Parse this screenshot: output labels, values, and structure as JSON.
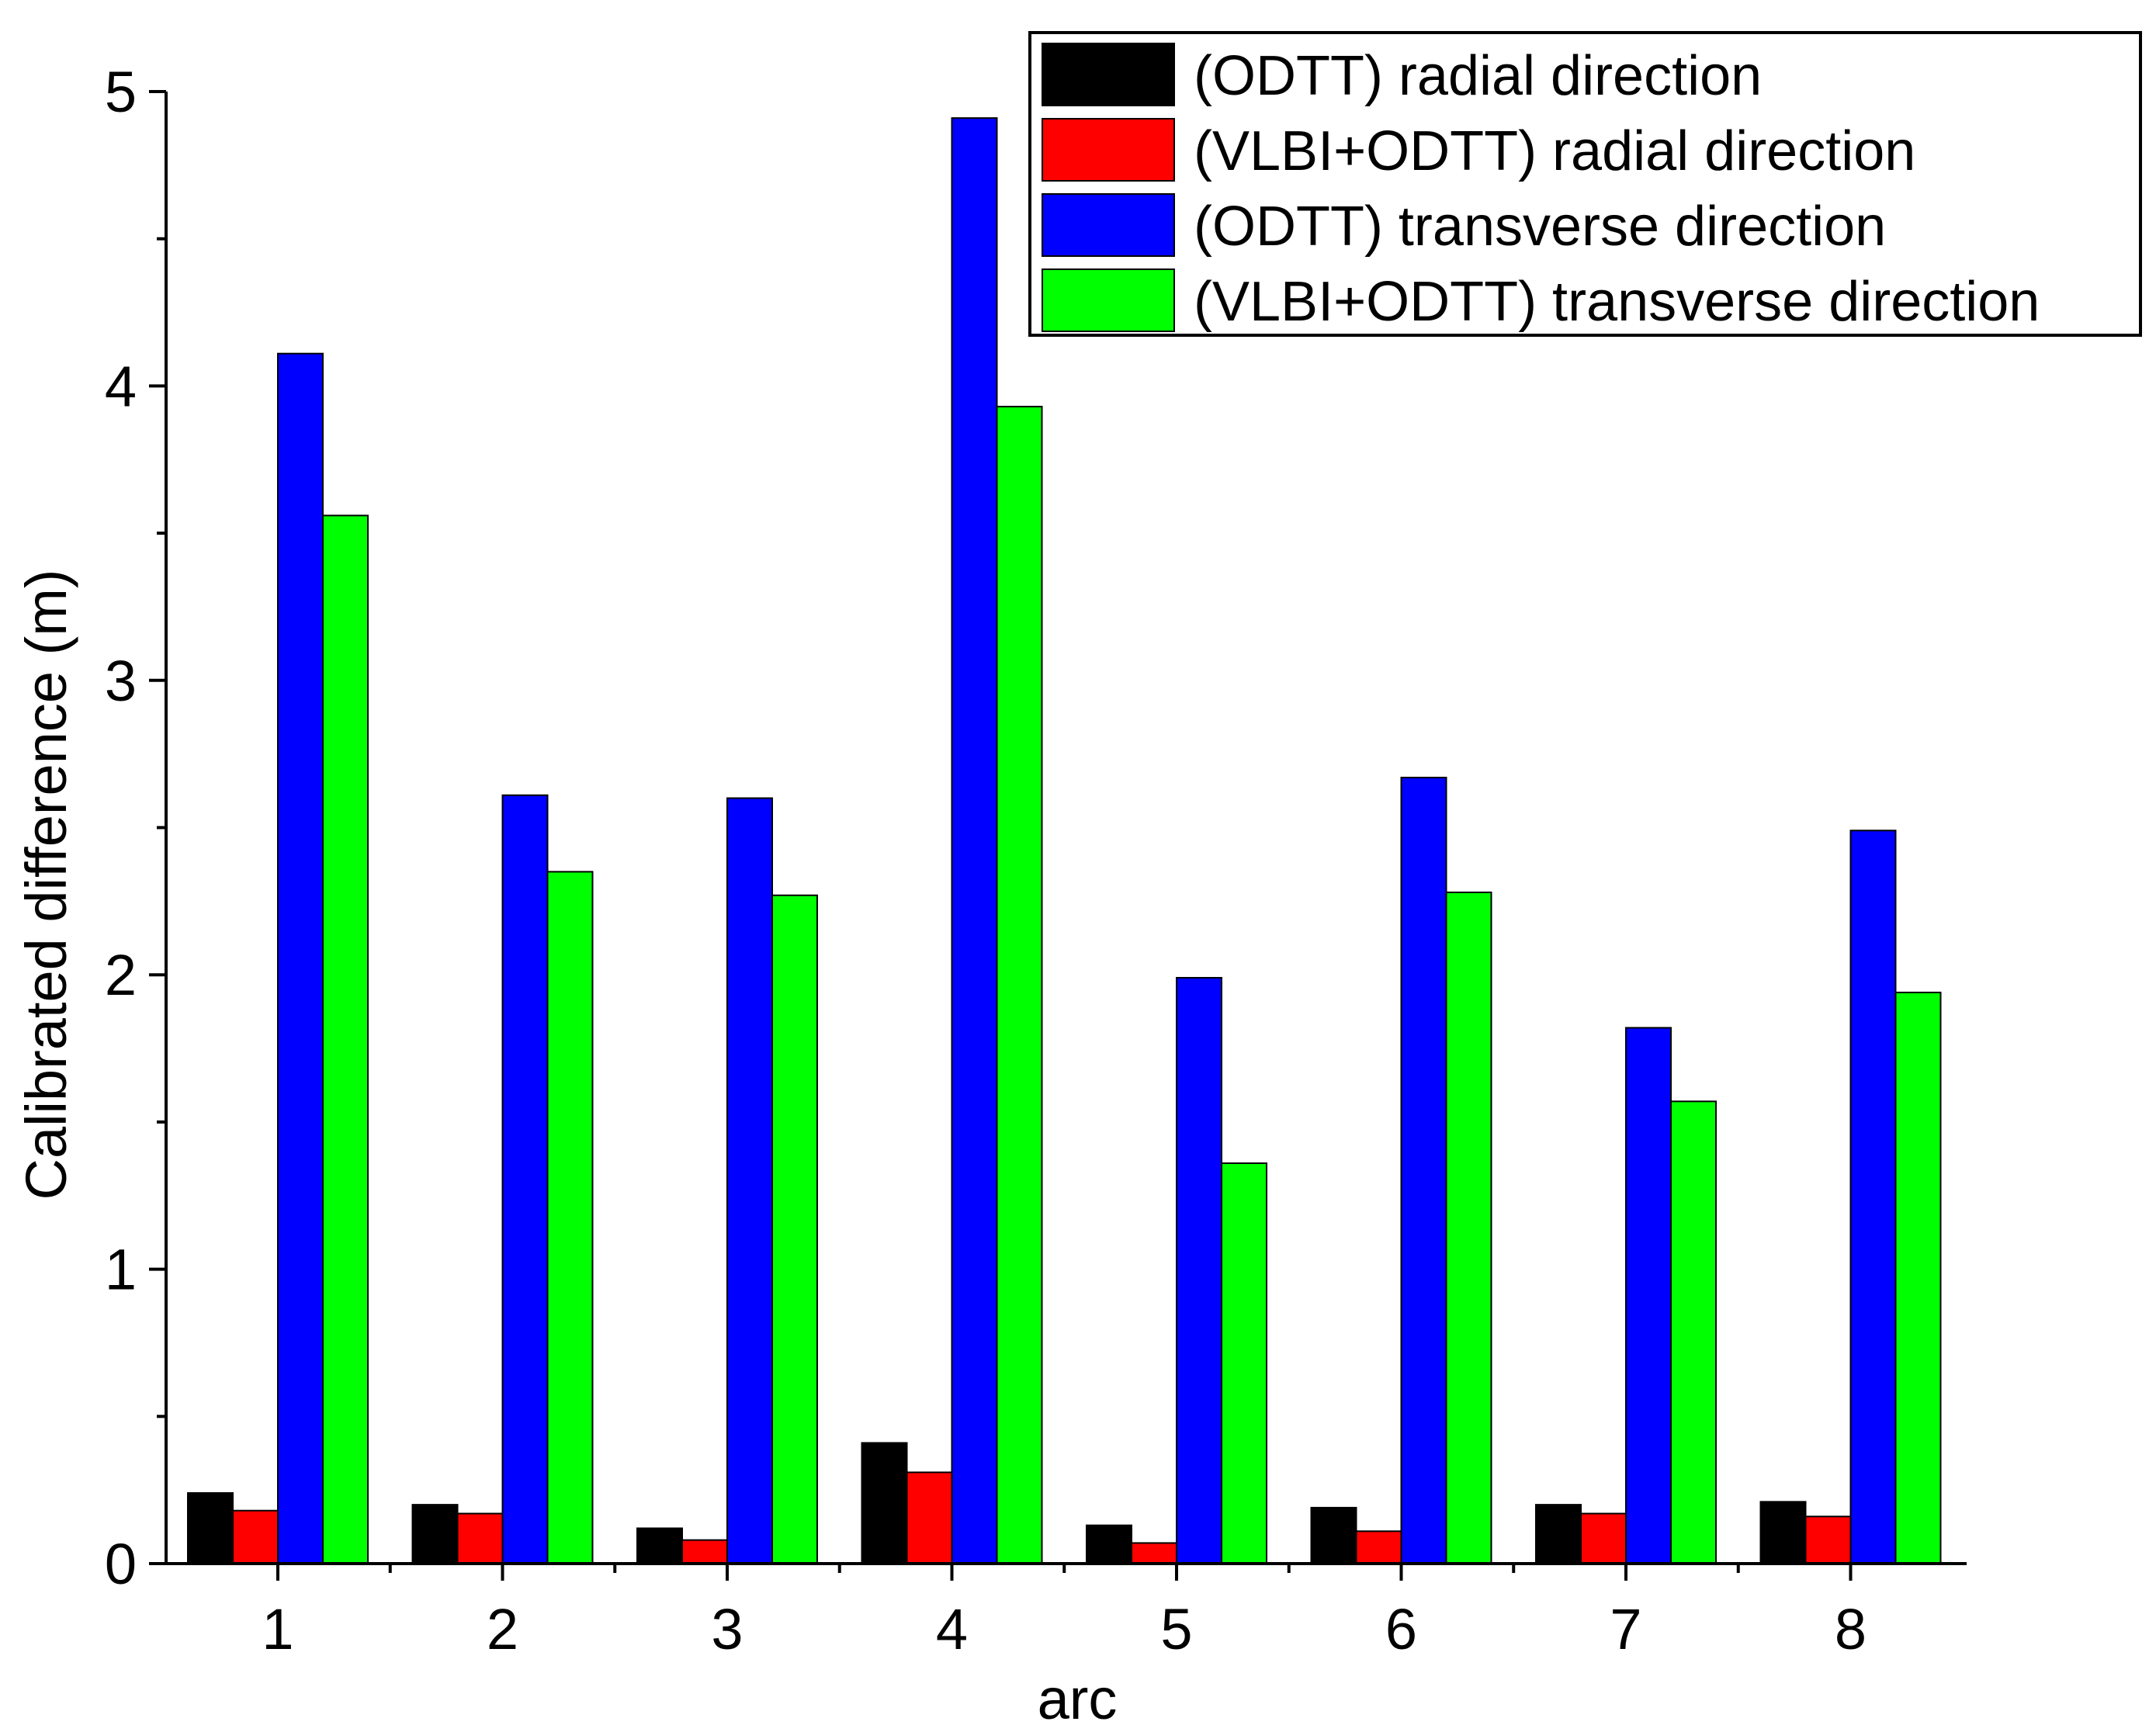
{
  "chart_data": {
    "type": "bar",
    "title": "",
    "xlabel": "arc",
    "ylabel": "Calibrated difference (m)",
    "categories": [
      "1",
      "2",
      "3",
      "4",
      "5",
      "6",
      "7",
      "8"
    ],
    "ylim": [
      0,
      5
    ],
    "yticks": [
      0,
      1,
      2,
      3,
      4,
      5
    ],
    "grid": false,
    "legend_position": "top-right",
    "series": [
      {
        "name": "(ODTT) radial direction",
        "color": "#000000",
        "values": [
          0.24,
          0.2,
          0.12,
          0.41,
          0.13,
          0.19,
          0.2,
          0.21
        ]
      },
      {
        "name": "(VLBI+ODTT) radial direction",
        "color": "#ff0000",
        "values": [
          0.18,
          0.17,
          0.08,
          0.31,
          0.07,
          0.11,
          0.17,
          0.16
        ]
      },
      {
        "name": "(ODTT) transverse direction",
        "color": "#0000ff",
        "values": [
          4.11,
          2.61,
          2.6,
          4.91,
          1.99,
          2.67,
          1.82,
          2.49
        ]
      },
      {
        "name": "(VLBI+ODTT) transverse direction",
        "color": "#00ff00",
        "values": [
          3.56,
          2.35,
          2.27,
          3.93,
          1.36,
          2.28,
          1.57,
          1.94
        ]
      }
    ]
  }
}
